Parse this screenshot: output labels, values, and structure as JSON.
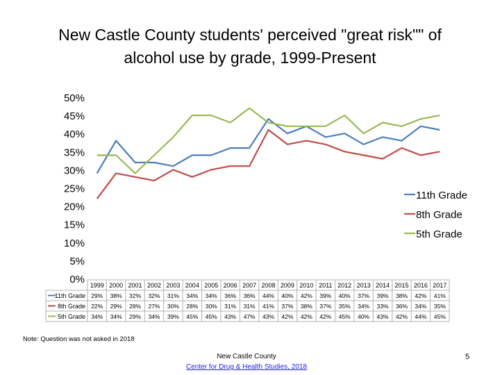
{
  "title_line1": "New Castle County students' perceived \"great risk\"\" of",
  "title_line2": "alcohol use by grade, 1999-Present",
  "note": "Note: Question was not asked in 2018",
  "footer": {
    "org": "New Castle County",
    "link": "Center for Drug & Health Studies, 2018"
  },
  "page_number": "5",
  "chart_data": {
    "type": "line",
    "ylim": [
      0,
      50
    ],
    "yticks": [
      "0%",
      "5%",
      "10%",
      "15%",
      "20%",
      "25%",
      "30%",
      "35%",
      "40%",
      "45%",
      "50%"
    ],
    "grid": false,
    "legend_position": "right",
    "categories": [
      "1999",
      "2000",
      "2001",
      "2002",
      "2003",
      "2004",
      "2005",
      "2006",
      "2007",
      "2008",
      "2009",
      "2010",
      "2011",
      "2012",
      "2013",
      "2014",
      "2015",
      "2016",
      "2017"
    ],
    "series": [
      {
        "name": "11th Grade",
        "color": "#4a7ebb",
        "values": [
          29,
          38,
          32,
          32,
          31,
          34,
          34,
          36,
          36,
          44,
          40,
          42,
          39,
          40,
          37,
          39,
          38,
          42,
          41
        ],
        "labels": [
          "29%",
          "38%",
          "32%",
          "32%",
          "31%",
          "34%",
          "34%",
          "36%",
          "36%",
          "44%",
          "40%",
          "42%",
          "39%",
          "40%",
          "37%",
          "39%",
          "38%",
          "42%",
          "41%"
        ]
      },
      {
        "name": "8th Grade",
        "color": "#be4b48",
        "values": [
          22,
          29,
          28,
          27,
          30,
          28,
          30,
          31,
          31,
          41,
          37,
          38,
          37,
          35,
          34,
          33,
          36,
          34,
          35
        ],
        "labels": [
          "22%",
          "29%",
          "28%",
          "27%",
          "30%",
          "28%",
          "30%",
          "31%",
          "31%",
          "41%",
          "37%",
          "38%",
          "37%",
          "35%",
          "34%",
          "33%",
          "36%",
          "34%",
          "35%"
        ]
      },
      {
        "name": "5th Grade",
        "color": "#98b954",
        "values": [
          34,
          34,
          29,
          34,
          39,
          45,
          45,
          43,
          47,
          43,
          42,
          42,
          42,
          45,
          40,
          43,
          42,
          44,
          45
        ],
        "labels": [
          "34%",
          "34%",
          "29%",
          "34%",
          "39%",
          "45%",
          "45%",
          "43%",
          "47%",
          "43%",
          "42%",
          "42%",
          "42%",
          "45%",
          "40%",
          "43%",
          "42%",
          "44%",
          "45%"
        ]
      }
    ]
  }
}
